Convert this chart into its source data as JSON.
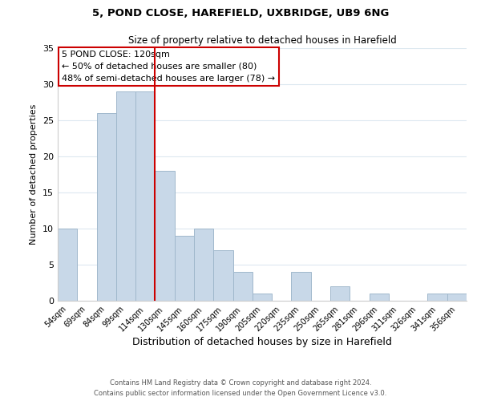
{
  "title1": "5, POND CLOSE, HAREFIELD, UXBRIDGE, UB9 6NG",
  "title2": "Size of property relative to detached houses in Harefield",
  "xlabel": "Distribution of detached houses by size in Harefield",
  "ylabel": "Number of detached properties",
  "footer1": "Contains HM Land Registry data © Crown copyright and database right 2024.",
  "footer2": "Contains public sector information licensed under the Open Government Licence v3.0.",
  "bar_labels": [
    "54sqm",
    "69sqm",
    "84sqm",
    "99sqm",
    "114sqm",
    "130sqm",
    "145sqm",
    "160sqm",
    "175sqm",
    "190sqm",
    "205sqm",
    "220sqm",
    "235sqm",
    "250sqm",
    "265sqm",
    "281sqm",
    "296sqm",
    "311sqm",
    "326sqm",
    "341sqm",
    "356sqm"
  ],
  "bar_values": [
    10,
    0,
    26,
    29,
    29,
    18,
    9,
    10,
    7,
    4,
    1,
    0,
    4,
    0,
    2,
    0,
    1,
    0,
    0,
    1,
    1
  ],
  "bar_color": "#c8d8e8",
  "bar_edge_color": "#a0b8cc",
  "vline_x": 4.5,
  "vline_color": "#cc0000",
  "annotation_title": "5 POND CLOSE: 120sqm",
  "annotation_line1": "← 50% of detached houses are smaller (80)",
  "annotation_line2": "48% of semi-detached houses are larger (78) →",
  "annotation_box_color": "#ffffff",
  "annotation_box_edge": "#cc0000",
  "ylim": [
    0,
    35
  ],
  "yticks": [
    0,
    5,
    10,
    15,
    20,
    25,
    30,
    35
  ],
  "background_color": "#ffffff",
  "grid_color": "#dde8f0"
}
